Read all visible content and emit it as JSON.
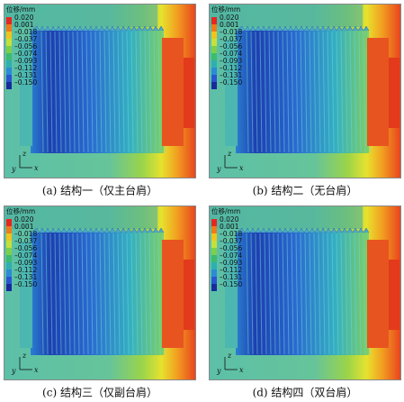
{
  "legend": {
    "title": "位移/mm",
    "labels": [
      "0.020",
      "0.001",
      "–0.018",
      "–0.037",
      "–0.056",
      "–0.074",
      "–0.093",
      "–0.112",
      "–0.131",
      "–0.150"
    ]
  },
  "axes": {
    "z": "z",
    "y": "y",
    "x": "x"
  },
  "panels": [
    {
      "caption": "(a) 结构一（仅主台肩）"
    },
    {
      "caption": "(b) 结构二（无台肩）"
    },
    {
      "caption": "(c) 结构三（仅副台肩）"
    },
    {
      "caption": "(d) 结构四（双台肩）"
    }
  ]
}
